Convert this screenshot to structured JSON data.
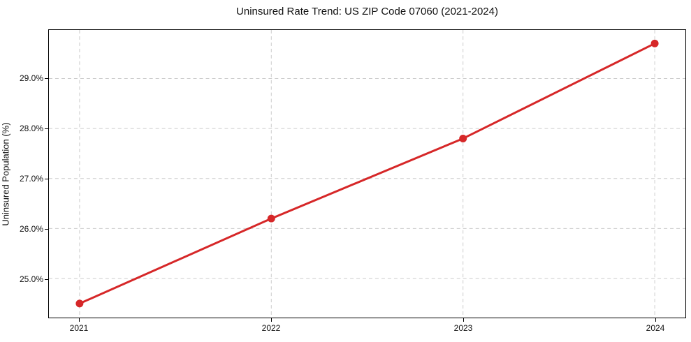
{
  "chart_data": {
    "type": "line",
    "title": "Uninsured Rate Trend: US ZIP Code 07060 (2021-2024)",
    "xlabel": "",
    "ylabel": "Uninsured Population (%)",
    "categories": [
      "2021",
      "2022",
      "2023",
      "2024"
    ],
    "x": [
      2021,
      2022,
      2023,
      2024
    ],
    "series": [
      {
        "name": "Uninsured rate",
        "values": [
          24.5,
          26.2,
          27.8,
          29.7
        ],
        "color": "#d62728",
        "marker": "circle",
        "line_width": 3
      }
    ],
    "y_ticks": [
      25.0,
      26.0,
      27.0,
      28.0,
      29.0
    ],
    "y_tick_labels": [
      "25.0%",
      "26.0%",
      "27.0%",
      "28.0%",
      "29.0%"
    ],
    "ylim": [
      24.22,
      29.97
    ],
    "grid": "dashed",
    "grid_color": "#cccccc",
    "axis_color": "#000000",
    "legend_position": "none"
  }
}
